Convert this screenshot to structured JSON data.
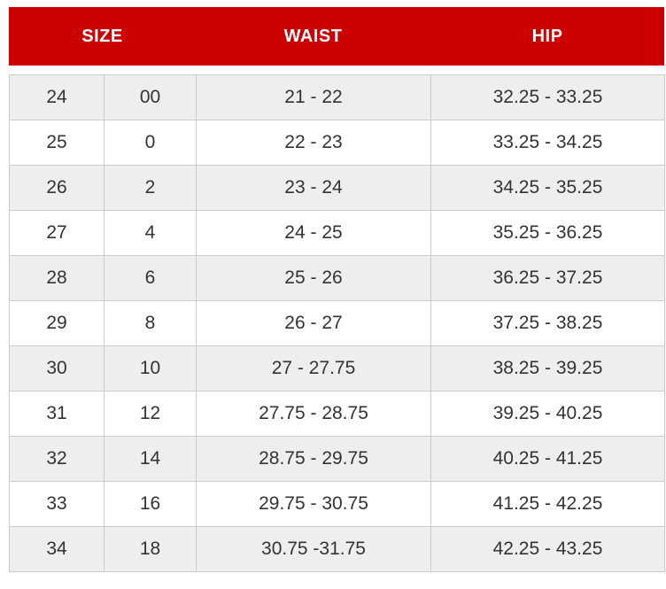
{
  "colors": {
    "header_bg": "#cc0000",
    "header_text": "#ffffff",
    "row_alt_bg": "#eeeeee",
    "row_bg": "#ffffff",
    "border": "#cccccc",
    "body_text": "#333333"
  },
  "chart_data": {
    "type": "table",
    "header": {
      "size": "SIZE",
      "waist": "WAIST",
      "hip": "HIP"
    },
    "column_semantics": [
      "size-numeric",
      "size-alpha",
      "waist-range-inches",
      "hip-range-inches"
    ],
    "rows": [
      [
        "24",
        "00",
        "21 - 22",
        "32.25 - 33.25"
      ],
      [
        "25",
        "0",
        "22 - 23",
        "33.25 - 34.25"
      ],
      [
        "26",
        "2",
        "23 - 24",
        "34.25 - 35.25"
      ],
      [
        "27",
        "4",
        "24 - 25",
        "35.25 - 36.25"
      ],
      [
        "28",
        "6",
        "25 - 26",
        "36.25 - 37.25"
      ],
      [
        "29",
        "8",
        "26 - 27",
        "37.25 - 38.25"
      ],
      [
        "30",
        "10",
        "27 - 27.75",
        "38.25 - 39.25"
      ],
      [
        "31",
        "12",
        "27.75 - 28.75",
        "39.25 - 40.25"
      ],
      [
        "32",
        "14",
        "28.75 - 29.75",
        "40.25 - 41.25"
      ],
      [
        "33",
        "16",
        "29.75 - 30.75",
        "41.25 - 42.25"
      ],
      [
        "34",
        "18",
        "30.75 -31.75",
        "42.25 - 43.25"
      ]
    ]
  }
}
